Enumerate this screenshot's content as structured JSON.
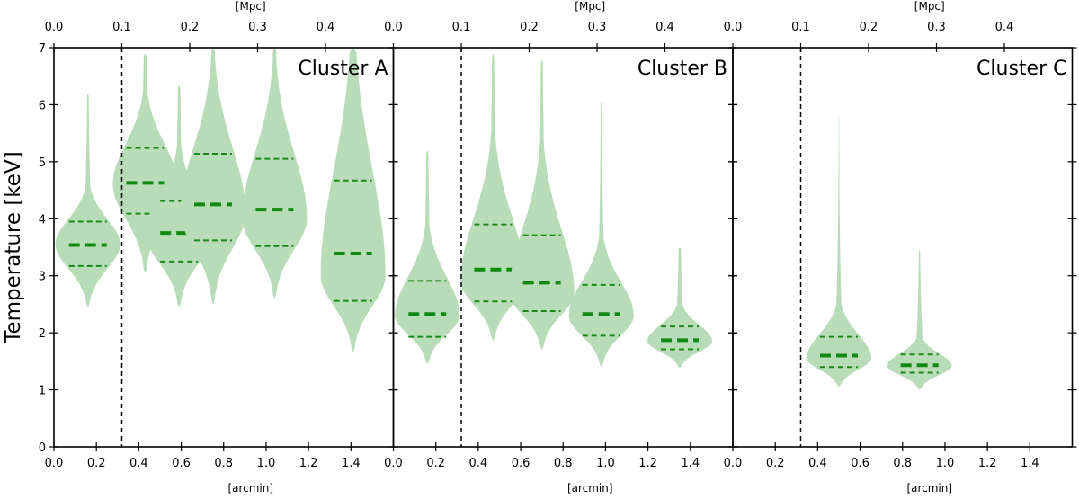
{
  "figure": {
    "ylabel": "Temperature [keV]",
    "bottom_axis_label": "[arcmin]",
    "top_axis_label": "[Mpc]",
    "colors": {
      "violin_fill": "#b7dcb7",
      "median_line": "#108a10",
      "percentile_line": "#1a8a1a",
      "divider": "#000000"
    }
  },
  "chart_data": [
    {
      "type": "violin",
      "title": "Cluster A",
      "ylabel": "Temperature [keV]",
      "xlabel": "[arcmin]",
      "top_xlabel": "[Mpc]",
      "xlim": [
        0.0,
        1.6
      ],
      "ylim": [
        0,
        7
      ],
      "xticks": [
        "0.0",
        "0.2",
        "0.4",
        "0.6",
        "0.8",
        "1.0",
        "1.2",
        "1.4"
      ],
      "top_xticks": [
        "0.0",
        "0.1",
        "0.2",
        "0.3",
        "0.4"
      ],
      "yticks": [
        "0",
        "1",
        "2",
        "3",
        "4",
        "5",
        "6",
        "7"
      ],
      "dashed_vline_x": 0.32,
      "violins": [
        {
          "x": 0.16,
          "min": 2.45,
          "max": 6.2,
          "p16": 3.17,
          "median": 3.54,
          "p84": 3.95,
          "mode": 3.55
        },
        {
          "x": 0.43,
          "min": 3.05,
          "max": 6.9,
          "p16": 4.09,
          "median": 4.63,
          "p84": 5.24,
          "mode": 4.6
        },
        {
          "x": 0.59,
          "min": 2.45,
          "max": 6.35,
          "p16": 3.25,
          "median": 3.75,
          "p84": 4.31,
          "mode": 3.7
        },
        {
          "x": 0.75,
          "min": 2.5,
          "max": 7.0,
          "p16": 3.62,
          "median": 4.25,
          "p84": 5.14,
          "mode": 4.1
        },
        {
          "x": 1.04,
          "min": 2.6,
          "max": 7.0,
          "p16": 3.52,
          "median": 4.16,
          "p84": 5.05,
          "mode": 4.0
        },
        {
          "x": 1.41,
          "min": 1.65,
          "max": 7.0,
          "p16": 2.56,
          "median": 3.39,
          "p84": 4.67,
          "mode": 3.0
        }
      ]
    },
    {
      "type": "violin",
      "title": "Cluster B",
      "xlabel": "[arcmin]",
      "top_xlabel": "[Mpc]",
      "xlim": [
        0.0,
        1.6
      ],
      "ylim": [
        0,
        7
      ],
      "xticks": [
        "0.0",
        "0.2",
        "0.4",
        "0.6",
        "0.8",
        "1.0",
        "1.2",
        "1.4"
      ],
      "top_xticks": [
        "0.0",
        "0.1",
        "0.2",
        "0.3",
        "0.4"
      ],
      "dashed_vline_x": 0.32,
      "violins": [
        {
          "x": 0.16,
          "min": 1.45,
          "max": 5.2,
          "p16": 1.93,
          "median": 2.33,
          "p84": 2.91,
          "mode": 2.3
        },
        {
          "x": 0.47,
          "min": 1.85,
          "max": 6.9,
          "p16": 2.55,
          "median": 3.11,
          "p84": 3.9,
          "mode": 2.9
        },
        {
          "x": 0.7,
          "min": 1.7,
          "max": 6.8,
          "p16": 2.38,
          "median": 2.88,
          "p84": 3.71,
          "mode": 2.7
        },
        {
          "x": 0.98,
          "min": 1.4,
          "max": 6.05,
          "p16": 1.95,
          "median": 2.33,
          "p84": 2.84,
          "mode": 2.3
        },
        {
          "x": 1.35,
          "min": 1.38,
          "max": 3.5,
          "p16": 1.71,
          "median": 1.87,
          "p84": 2.11,
          "mode": 1.85
        }
      ]
    },
    {
      "type": "violin",
      "title": "Cluster C",
      "xlabel": "[arcmin]",
      "top_xlabel": "[Mpc]",
      "xlim": [
        0.0,
        1.6
      ],
      "ylim": [
        0,
        7
      ],
      "xticks": [
        "0.0",
        "0.2",
        "0.4",
        "0.6",
        "0.8",
        "1.0",
        "1.2",
        "1.4"
      ],
      "top_xticks": [
        "0.0",
        "0.1",
        "0.2",
        "0.3",
        "0.4"
      ],
      "dashed_vline_x": 0.32,
      "violins": [
        {
          "x": 0.5,
          "min": 1.05,
          "max": 5.85,
          "p16": 1.4,
          "median": 1.6,
          "p84": 1.93,
          "mode": 1.55
        },
        {
          "x": 0.88,
          "min": 1.0,
          "max": 3.45,
          "p16": 1.3,
          "median": 1.43,
          "p84": 1.62,
          "mode": 1.42
        }
      ]
    }
  ]
}
